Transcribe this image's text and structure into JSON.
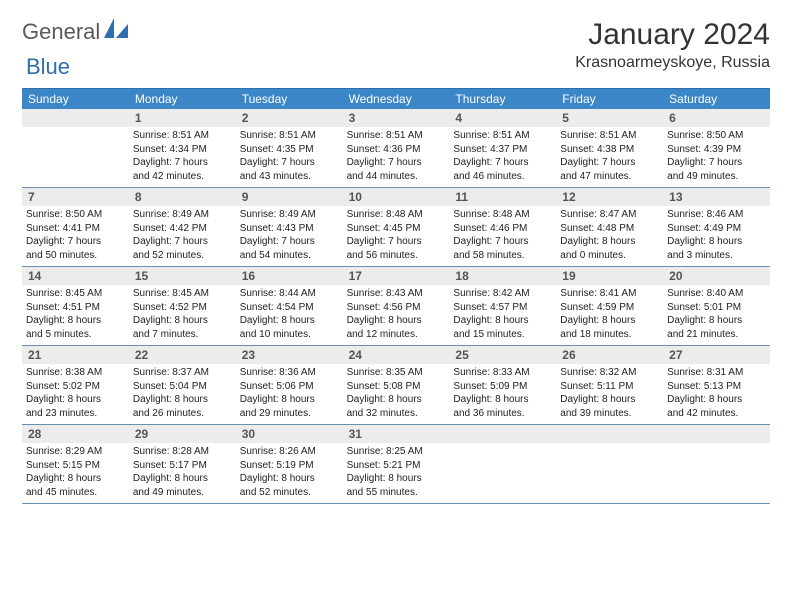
{
  "brand": {
    "text1": "General",
    "text2": "Blue"
  },
  "title": "January 2024",
  "location": "Krasnoarmeyskoye, Russia",
  "colors": {
    "header_bg": "#3b86c6",
    "header_text": "#ffffff",
    "daynum_bg": "#ececec",
    "daynum_text": "#555555",
    "rule": "#6a8fb0",
    "brand_gray": "#5a5a5a",
    "brand_blue": "#2f6fab"
  },
  "day_names": [
    "Sunday",
    "Monday",
    "Tuesday",
    "Wednesday",
    "Thursday",
    "Friday",
    "Saturday"
  ],
  "labels": {
    "sunrise": "Sunrise:",
    "sunset": "Sunset:",
    "daylight": "Daylight:"
  },
  "weeks": [
    [
      null,
      {
        "n": "1",
        "sr": "8:51 AM",
        "ss": "4:34 PM",
        "dl1": "7 hours",
        "dl2": "and 42 minutes."
      },
      {
        "n": "2",
        "sr": "8:51 AM",
        "ss": "4:35 PM",
        "dl1": "7 hours",
        "dl2": "and 43 minutes."
      },
      {
        "n": "3",
        "sr": "8:51 AM",
        "ss": "4:36 PM",
        "dl1": "7 hours",
        "dl2": "and 44 minutes."
      },
      {
        "n": "4",
        "sr": "8:51 AM",
        "ss": "4:37 PM",
        "dl1": "7 hours",
        "dl2": "and 46 minutes."
      },
      {
        "n": "5",
        "sr": "8:51 AM",
        "ss": "4:38 PM",
        "dl1": "7 hours",
        "dl2": "and 47 minutes."
      },
      {
        "n": "6",
        "sr": "8:50 AM",
        "ss": "4:39 PM",
        "dl1": "7 hours",
        "dl2": "and 49 minutes."
      }
    ],
    [
      {
        "n": "7",
        "sr": "8:50 AM",
        "ss": "4:41 PM",
        "dl1": "7 hours",
        "dl2": "and 50 minutes."
      },
      {
        "n": "8",
        "sr": "8:49 AM",
        "ss": "4:42 PM",
        "dl1": "7 hours",
        "dl2": "and 52 minutes."
      },
      {
        "n": "9",
        "sr": "8:49 AM",
        "ss": "4:43 PM",
        "dl1": "7 hours",
        "dl2": "and 54 minutes."
      },
      {
        "n": "10",
        "sr": "8:48 AM",
        "ss": "4:45 PM",
        "dl1": "7 hours",
        "dl2": "and 56 minutes."
      },
      {
        "n": "11",
        "sr": "8:48 AM",
        "ss": "4:46 PM",
        "dl1": "7 hours",
        "dl2": "and 58 minutes."
      },
      {
        "n": "12",
        "sr": "8:47 AM",
        "ss": "4:48 PM",
        "dl1": "8 hours",
        "dl2": "and 0 minutes."
      },
      {
        "n": "13",
        "sr": "8:46 AM",
        "ss": "4:49 PM",
        "dl1": "8 hours",
        "dl2": "and 3 minutes."
      }
    ],
    [
      {
        "n": "14",
        "sr": "8:45 AM",
        "ss": "4:51 PM",
        "dl1": "8 hours",
        "dl2": "and 5 minutes."
      },
      {
        "n": "15",
        "sr": "8:45 AM",
        "ss": "4:52 PM",
        "dl1": "8 hours",
        "dl2": "and 7 minutes."
      },
      {
        "n": "16",
        "sr": "8:44 AM",
        "ss": "4:54 PM",
        "dl1": "8 hours",
        "dl2": "and 10 minutes."
      },
      {
        "n": "17",
        "sr": "8:43 AM",
        "ss": "4:56 PM",
        "dl1": "8 hours",
        "dl2": "and 12 minutes."
      },
      {
        "n": "18",
        "sr": "8:42 AM",
        "ss": "4:57 PM",
        "dl1": "8 hours",
        "dl2": "and 15 minutes."
      },
      {
        "n": "19",
        "sr": "8:41 AM",
        "ss": "4:59 PM",
        "dl1": "8 hours",
        "dl2": "and 18 minutes."
      },
      {
        "n": "20",
        "sr": "8:40 AM",
        "ss": "5:01 PM",
        "dl1": "8 hours",
        "dl2": "and 21 minutes."
      }
    ],
    [
      {
        "n": "21",
        "sr": "8:38 AM",
        "ss": "5:02 PM",
        "dl1": "8 hours",
        "dl2": "and 23 minutes."
      },
      {
        "n": "22",
        "sr": "8:37 AM",
        "ss": "5:04 PM",
        "dl1": "8 hours",
        "dl2": "and 26 minutes."
      },
      {
        "n": "23",
        "sr": "8:36 AM",
        "ss": "5:06 PM",
        "dl1": "8 hours",
        "dl2": "and 29 minutes."
      },
      {
        "n": "24",
        "sr": "8:35 AM",
        "ss": "5:08 PM",
        "dl1": "8 hours",
        "dl2": "and 32 minutes."
      },
      {
        "n": "25",
        "sr": "8:33 AM",
        "ss": "5:09 PM",
        "dl1": "8 hours",
        "dl2": "and 36 minutes."
      },
      {
        "n": "26",
        "sr": "8:32 AM",
        "ss": "5:11 PM",
        "dl1": "8 hours",
        "dl2": "and 39 minutes."
      },
      {
        "n": "27",
        "sr": "8:31 AM",
        "ss": "5:13 PM",
        "dl1": "8 hours",
        "dl2": "and 42 minutes."
      }
    ],
    [
      {
        "n": "28",
        "sr": "8:29 AM",
        "ss": "5:15 PM",
        "dl1": "8 hours",
        "dl2": "and 45 minutes."
      },
      {
        "n": "29",
        "sr": "8:28 AM",
        "ss": "5:17 PM",
        "dl1": "8 hours",
        "dl2": "and 49 minutes."
      },
      {
        "n": "30",
        "sr": "8:26 AM",
        "ss": "5:19 PM",
        "dl1": "8 hours",
        "dl2": "and 52 minutes."
      },
      {
        "n": "31",
        "sr": "8:25 AM",
        "ss": "5:21 PM",
        "dl1": "8 hours",
        "dl2": "and 55 minutes."
      },
      null,
      null,
      null
    ]
  ]
}
